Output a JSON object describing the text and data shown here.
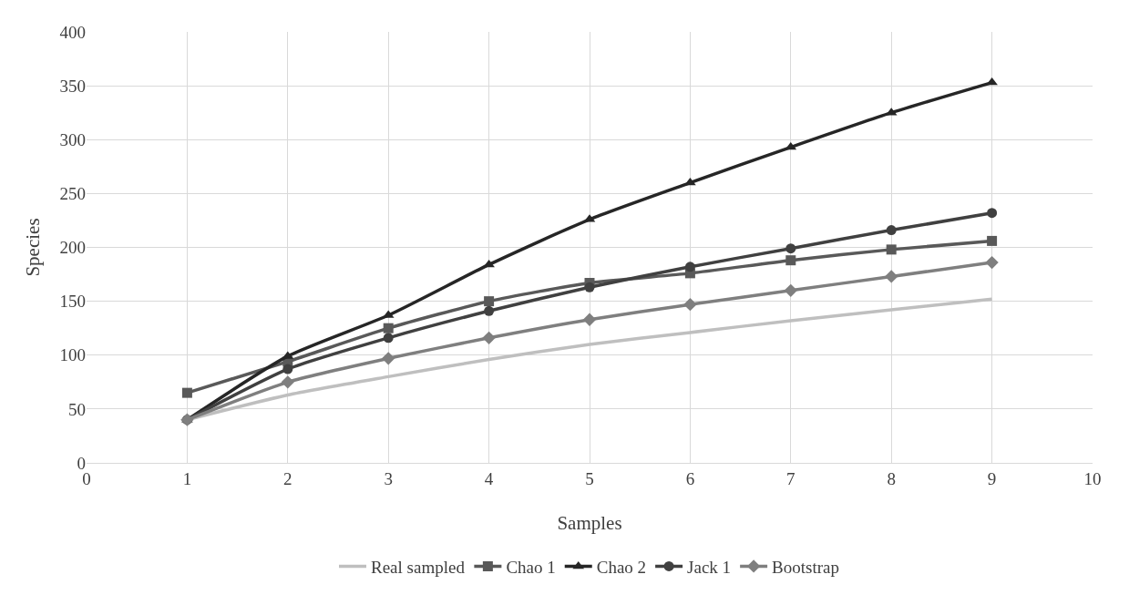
{
  "chart_data": {
    "type": "line",
    "xlabel": "Samples",
    "ylabel": "Species",
    "x": [
      1,
      2,
      3,
      4,
      5,
      6,
      7,
      8,
      9
    ],
    "series": [
      {
        "name": "Real sampled",
        "color": "#bfbfbf",
        "marker": "none",
        "values": [
          40,
          63,
          80,
          96,
          110,
          121,
          132,
          142,
          152
        ]
      },
      {
        "name": "Chao 1",
        "color": "#595959",
        "marker": "square",
        "values": [
          65,
          94,
          125,
          150,
          167,
          176,
          188,
          198,
          206
        ]
      },
      {
        "name": "Chao 2",
        "color": "#262626",
        "marker": "triangle",
        "values": [
          40,
          99,
          137,
          184,
          226,
          260,
          293,
          325,
          353
        ]
      },
      {
        "name": "Jack 1",
        "color": "#404040",
        "marker": "circle",
        "values": [
          40,
          87,
          116,
          141,
          163,
          182,
          199,
          216,
          232
        ]
      },
      {
        "name": "Bootstrap",
        "color": "#7f7f7f",
        "marker": "diamond",
        "values": [
          40,
          75,
          97,
          116,
          133,
          147,
          160,
          173,
          186
        ]
      }
    ],
    "xlim": [
      0,
      10
    ],
    "xticks": [
      0,
      1,
      2,
      3,
      4,
      5,
      6,
      7,
      8,
      9,
      10
    ],
    "ylim": [
      0,
      400
    ],
    "yticks": [
      0,
      50,
      100,
      150,
      200,
      250,
      300,
      350,
      400
    ],
    "grid": true,
    "legend": "bottom",
    "line_style": "solid"
  }
}
